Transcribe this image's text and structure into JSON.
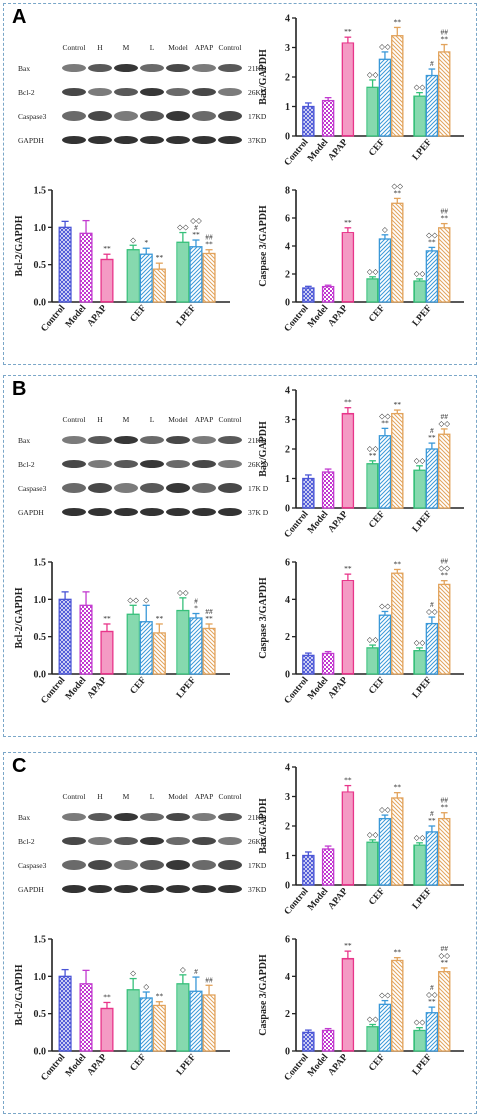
{
  "panels": [
    {
      "label": "A",
      "blot": {
        "lanes": [
          "Control",
          "H",
          "M",
          "L",
          "Model",
          "APAP",
          "Control"
        ],
        "bands": [
          {
            "name": "Bax",
            "kd": "21KD"
          },
          {
            "name": "Bcl-2",
            "kd": "26KD"
          },
          {
            "name": "Caspase3",
            "kd": "17KD"
          },
          {
            "name": "GAPDH",
            "kd": "37KD"
          }
        ]
      },
      "charts": [
        {
          "type": "bar",
          "ylabel": "Bax/GAPDH",
          "ylim": [
            0,
            4
          ],
          "yticks": [
            0,
            1,
            2,
            3,
            4
          ],
          "yticklabels": [
            "0",
            "1",
            "2",
            "3",
            "4"
          ],
          "groups": [
            "Control",
            "Model",
            "APAP",
            "CEF",
            "LPEF"
          ],
          "values": [
            [
              1.0
            ],
            [
              1.2
            ],
            [
              3.15
            ],
            [
              1.65,
              2.6,
              3.4
            ],
            [
              1.35,
              2.05,
              2.85
            ]
          ],
          "errors": [
            [
              0.12
            ],
            [
              0.1
            ],
            [
              0.2
            ],
            [
              0.25,
              0.25,
              0.28
            ],
            [
              0.12,
              0.22,
              0.25
            ]
          ],
          "annotations": [
            [
              ""
            ],
            [
              ""
            ],
            [
              "**"
            ],
            [
              "◇◇",
              "◇◇",
              "**"
            ],
            [
              "◇◇",
              "#",
              "##\n**"
            ]
          ]
        },
        {
          "type": "bar",
          "ylabel": "Bcl-2/GAPDH",
          "ylim": [
            0,
            1.5
          ],
          "yticks": [
            0,
            0.5,
            1.0,
            1.5
          ],
          "yticklabels": [
            "0.0",
            "0.5",
            "1.0",
            "1.5"
          ],
          "groups": [
            "Control",
            "Model",
            "APAP",
            "CEF",
            "LPEF"
          ],
          "values": [
            [
              1.0
            ],
            [
              0.92
            ],
            [
              0.57
            ],
            [
              0.7,
              0.64,
              0.44
            ],
            [
              0.8,
              0.74,
              0.65
            ]
          ],
          "errors": [
            [
              0.08
            ],
            [
              0.17
            ],
            [
              0.07
            ],
            [
              0.06,
              0.08,
              0.08
            ],
            [
              0.13,
              0.09,
              0.05
            ]
          ],
          "annotations": [
            [
              ""
            ],
            [
              ""
            ],
            [
              "**"
            ],
            [
              "◇",
              "*",
              "**"
            ],
            [
              "◇◇",
              "◇◇\n#\n**",
              "##\n**"
            ]
          ]
        },
        {
          "type": "bar",
          "ylabel": "Caspase 3/GAPDH",
          "ylim": [
            0,
            8
          ],
          "yticks": [
            0,
            2,
            4,
            6,
            8
          ],
          "yticklabels": [
            "0",
            "2",
            "4",
            "6",
            "8"
          ],
          "groups": [
            "Control",
            "Model",
            "APAP",
            "CEF",
            "LPEF"
          ],
          "values": [
            [
              1.0
            ],
            [
              1.1
            ],
            [
              4.95
            ],
            [
              1.65,
              4.5,
              7.05
            ],
            [
              1.5,
              3.65,
              5.3
            ]
          ],
          "errors": [
            [
              0.12
            ],
            [
              0.1
            ],
            [
              0.35
            ],
            [
              0.15,
              0.3,
              0.35
            ],
            [
              0.15,
              0.25,
              0.3
            ]
          ],
          "annotations": [
            [
              ""
            ],
            [
              ""
            ],
            [
              "**"
            ],
            [
              "◇◇",
              "◇",
              "◇◇\n**"
            ],
            [
              "◇◇",
              "◇◇\n**",
              "##\n**"
            ]
          ]
        }
      ]
    },
    {
      "label": "B",
      "blot": {
        "lanes": [
          "Control",
          "H",
          "M",
          "L",
          "Model",
          "APAP",
          "Control"
        ],
        "bands": [
          {
            "name": "Bax",
            "kd": "21KD"
          },
          {
            "name": "Bcl-2",
            "kd": "26K D"
          },
          {
            "name": "Caspase3",
            "kd": "17K D"
          },
          {
            "name": "GAPDH",
            "kd": "37K D"
          }
        ]
      },
      "charts": [
        {
          "type": "bar",
          "ylabel": "Bax/GAPDH",
          "ylim": [
            0,
            4
          ],
          "yticks": [
            0,
            1,
            2,
            3,
            4
          ],
          "yticklabels": [
            "0",
            "1",
            "2",
            "3",
            "4"
          ],
          "groups": [
            "Control",
            "Model",
            "APAP",
            "CEF",
            "LPEF"
          ],
          "values": [
            [
              1.0
            ],
            [
              1.22
            ],
            [
              3.2
            ],
            [
              1.5,
              2.45,
              3.2
            ],
            [
              1.28,
              2.0,
              2.5
            ]
          ],
          "errors": [
            [
              0.12
            ],
            [
              0.1
            ],
            [
              0.2
            ],
            [
              0.1,
              0.25,
              0.12
            ],
            [
              0.15,
              0.2,
              0.18
            ]
          ],
          "annotations": [
            [
              ""
            ],
            [
              ""
            ],
            [
              "**"
            ],
            [
              "◇◇\n**",
              "◇◇\n**",
              "**"
            ],
            [
              "◇◇",
              "#\n**",
              "##\n◇◇"
            ]
          ]
        },
        {
          "type": "bar",
          "ylabel": "Bcl-2/GAPDH",
          "ylim": [
            0,
            1.5
          ],
          "yticks": [
            0,
            0.5,
            1.0,
            1.5
          ],
          "yticklabels": [
            "0.0",
            "0.5",
            "1.0",
            "1.5"
          ],
          "groups": [
            "Control",
            "Model",
            "APAP",
            "CEF",
            "LPEF"
          ],
          "values": [
            [
              1.0
            ],
            [
              0.92
            ],
            [
              0.57
            ],
            [
              0.8,
              0.7,
              0.55
            ],
            [
              0.85,
              0.75,
              0.61
            ]
          ],
          "errors": [
            [
              0.1
            ],
            [
              0.18
            ],
            [
              0.1
            ],
            [
              0.12,
              0.22,
              0.12
            ],
            [
              0.17,
              0.06,
              0.06
            ]
          ],
          "annotations": [
            [
              ""
            ],
            [
              ""
            ],
            [
              "**"
            ],
            [
              "◇◇",
              "◇",
              "**"
            ],
            [
              "◇◇",
              "#\n*",
              "##\n**"
            ]
          ]
        },
        {
          "type": "bar",
          "ylabel": "Caspase 3/GAPDH",
          "ylim": [
            0,
            6
          ],
          "yticks": [
            0,
            2,
            4,
            6
          ],
          "yticklabels": [
            "0",
            "2",
            "4",
            "6"
          ],
          "groups": [
            "Control",
            "Model",
            "APAP",
            "CEF",
            "LPEF"
          ],
          "values": [
            [
              1.0
            ],
            [
              1.1
            ],
            [
              5.0
            ],
            [
              1.4,
              3.15,
              5.4
            ],
            [
              1.25,
              2.7,
              4.8
            ]
          ],
          "errors": [
            [
              0.12
            ],
            [
              0.1
            ],
            [
              0.35
            ],
            [
              0.15,
              0.2,
              0.2
            ],
            [
              0.15,
              0.35,
              0.2
            ]
          ],
          "annotations": [
            [
              ""
            ],
            [
              ""
            ],
            [
              "**"
            ],
            [
              "◇◇",
              "◇◇",
              "**"
            ],
            [
              "◇◇",
              "#\n◇◇",
              "##\n◇◇\n**"
            ]
          ]
        }
      ]
    },
    {
      "label": "C",
      "blot": {
        "lanes": [
          "Control",
          "H",
          "M",
          "L",
          "Model",
          "APAP",
          "Control"
        ],
        "bands": [
          {
            "name": "Bax",
            "kd": "21KD"
          },
          {
            "name": "Bcl-2",
            "kd": "26KD"
          },
          {
            "name": "Caspase3",
            "kd": "17KD"
          },
          {
            "name": "GAPDH",
            "kd": "37KD"
          }
        ]
      },
      "charts": [
        {
          "type": "bar",
          "ylabel": "Bax/GAPDH",
          "ylim": [
            0,
            4
          ],
          "yticks": [
            0,
            1,
            2,
            3,
            4
          ],
          "yticklabels": [
            "0",
            "1",
            "2",
            "3",
            "4"
          ],
          "groups": [
            "Control",
            "Model",
            "APAP",
            "CEF",
            "LPEF"
          ],
          "values": [
            [
              1.0
            ],
            [
              1.22
            ],
            [
              3.15
            ],
            [
              1.45,
              2.25,
              2.95
            ],
            [
              1.35,
              1.8,
              2.25
            ]
          ],
          "errors": [
            [
              0.12
            ],
            [
              0.1
            ],
            [
              0.22
            ],
            [
              0.08,
              0.12,
              0.18
            ],
            [
              0.08,
              0.2,
              0.2
            ]
          ],
          "annotations": [
            [
              ""
            ],
            [
              ""
            ],
            [
              "**"
            ],
            [
              "◇◇",
              "◇◇",
              "**"
            ],
            [
              "◇◇",
              "#\n**",
              "##\n**"
            ]
          ]
        },
        {
          "type": "bar",
          "ylabel": "Bcl-2/GAPDH",
          "ylim": [
            0,
            1.5
          ],
          "yticks": [
            0,
            0.5,
            1.0,
            1.5
          ],
          "yticklabels": [
            "0.0",
            "0.5",
            "1.0",
            "1.5"
          ],
          "groups": [
            "Control",
            "Model",
            "APAP",
            "CEF",
            "LPEF"
          ],
          "values": [
            [
              1.0
            ],
            [
              0.9
            ],
            [
              0.57
            ],
            [
              0.82,
              0.71,
              0.61
            ],
            [
              0.9,
              0.8,
              0.75
            ]
          ],
          "errors": [
            [
              0.09
            ],
            [
              0.18
            ],
            [
              0.08
            ],
            [
              0.15,
              0.08,
              0.05
            ],
            [
              0.12,
              0.19,
              0.13
            ]
          ],
          "annotations": [
            [
              ""
            ],
            [
              ""
            ],
            [
              "**"
            ],
            [
              "◇",
              "◇",
              "**"
            ],
            [
              "◇",
              "#",
              "##"
            ]
          ]
        },
        {
          "type": "bar",
          "ylabel": "Caspase 3/GAPDH",
          "ylim": [
            0,
            6
          ],
          "yticks": [
            0,
            2,
            4,
            6
          ],
          "yticklabels": [
            "0",
            "2",
            "4",
            "6"
          ],
          "groups": [
            "Control",
            "Model",
            "APAP",
            "CEF",
            "LPEF"
          ],
          "values": [
            [
              1.0
            ],
            [
              1.1
            ],
            [
              4.95
            ],
            [
              1.3,
              2.5,
              4.85
            ],
            [
              1.1,
              2.05,
              4.25
            ]
          ],
          "errors": [
            [
              0.12
            ],
            [
              0.1
            ],
            [
              0.4
            ],
            [
              0.12,
              0.2,
              0.15
            ],
            [
              0.15,
              0.3,
              0.2
            ]
          ],
          "annotations": [
            [
              ""
            ],
            [
              ""
            ],
            [
              "**"
            ],
            [
              "◇◇",
              "◇◇",
              "**"
            ],
            [
              "◇◇",
              "#\n◇◇\n**",
              "##\n◇◇\n**"
            ]
          ]
        }
      ]
    }
  ],
  "colors": {
    "control": "#4a55d6",
    "model": "#c23ad0",
    "apap": "#e8358a",
    "h": "#36c07a",
    "m": "#3a98d8",
    "l": "#e2a35c",
    "annotation": "#222222"
  }
}
